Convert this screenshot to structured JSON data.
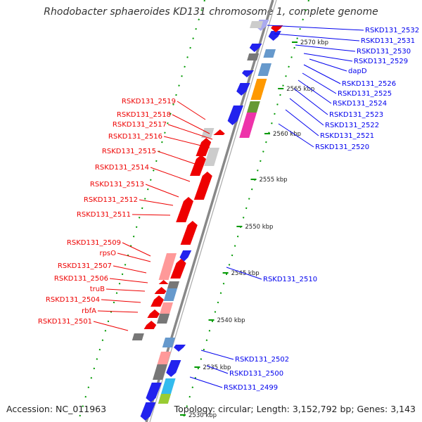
{
  "title": "Rhodobacter sphaeroides KD131 chromosome 1, complete genome",
  "footer": {
    "accession": "Accession: NC_011963",
    "summary": "Topology: circular; Length: 3,152,792 bp; Genes: 3,143"
  },
  "colors": {
    "reverse_strand": "#ee0000",
    "forward_strand": "#0000ee",
    "backbone": "#888888",
    "tick": "#009900"
  },
  "ticks": [
    {
      "label": "2570 kbp"
    },
    {
      "label": "2565 kbp"
    },
    {
      "label": "2560 kbp"
    },
    {
      "label": "2555 kbp"
    },
    {
      "label": "2550 kbp"
    },
    {
      "label": "2545 kbp"
    },
    {
      "label": "2540 kbp"
    },
    {
      "label": "2535 kbp"
    },
    {
      "label": "2530 kbp"
    }
  ],
  "forward_genes": [
    {
      "label": "RSKD131_2532"
    },
    {
      "label": "RSKD131_2531"
    },
    {
      "label": "RSKD131_2530"
    },
    {
      "label": "RSKD131_2529"
    },
    {
      "label": "dapD"
    },
    {
      "label": "RSKD131_2526"
    },
    {
      "label": "RSKD131_2525"
    },
    {
      "label": "RSKD131_2524"
    },
    {
      "label": "RSKD131_2523"
    },
    {
      "label": "RSKD131_2522"
    },
    {
      "label": "RSKD131_2521"
    },
    {
      "label": "RSKD131_2520"
    },
    {
      "label": "RSKD131_2510"
    },
    {
      "label": "RSKD131_2502"
    },
    {
      "label": "RSKD131_2500"
    },
    {
      "label": "RSKD131_2499"
    }
  ],
  "reverse_genes": [
    {
      "label": "RSKD131_2519"
    },
    {
      "label": "RSKD131_2518"
    },
    {
      "label": "RSKD131_2517"
    },
    {
      "label": "RSKD131_2516"
    },
    {
      "label": "RSKD131_2515"
    },
    {
      "label": "RSKD131_2514"
    },
    {
      "label": "RSKD131_2513"
    },
    {
      "label": "RSKD131_2512"
    },
    {
      "label": "RSKD131_2511"
    },
    {
      "label": "RSKD131_2509"
    },
    {
      "label": "rpsO"
    },
    {
      "label": "RSKD131_2507"
    },
    {
      "label": "RSKD131_2506"
    },
    {
      "label": "truB"
    },
    {
      "label": "RSKD131_2504"
    },
    {
      "label": "rbfA"
    },
    {
      "label": "RSKD131_2501"
    }
  ]
}
